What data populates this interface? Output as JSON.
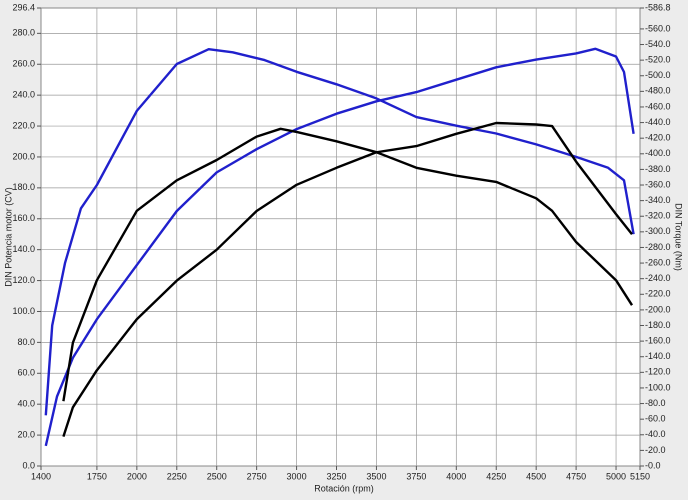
{
  "chart_data": {
    "type": "line",
    "xlabel": "Rotación (rpm)",
    "ylabel": "DIN Potencia motor (CV)",
    "y2label": "DIN Torque (Nm)",
    "xlim": [
      1400,
      5150
    ],
    "xticks": [
      1400,
      1750,
      2000,
      2250,
      2500,
      2750,
      3000,
      3250,
      3500,
      3750,
      4000,
      4250,
      4500,
      4750,
      5000,
      5150
    ],
    "ylim": [
      0,
      296.4
    ],
    "yticks": [
      {
        "value": 0,
        "label": "0.0"
      },
      {
        "value": 20,
        "label": "20.0"
      },
      {
        "value": 40,
        "label": "40.0"
      },
      {
        "value": 60,
        "label": "60.0"
      },
      {
        "value": 80,
        "label": "80.0"
      },
      {
        "value": 100,
        "label": "100.0"
      },
      {
        "value": 120,
        "label": "120.0"
      },
      {
        "value": 140,
        "label": "140.0"
      },
      {
        "value": 160,
        "label": "160.0"
      },
      {
        "value": 180,
        "label": "180.0"
      },
      {
        "value": 200,
        "label": "200.0"
      },
      {
        "value": 220,
        "label": "220.0"
      },
      {
        "value": 240,
        "label": "240.0"
      },
      {
        "value": 260,
        "label": "260.0"
      },
      {
        "value": 280,
        "label": "280.0"
      },
      {
        "value": 296.4,
        "label": "296.4"
      }
    ],
    "y2lim": [
      0,
      586.8
    ],
    "y2ticks": [
      {
        "value": 0,
        "label": "-0.0"
      },
      {
        "value": 20,
        "label": "-20.0"
      },
      {
        "value": 40,
        "label": "-40.0"
      },
      {
        "value": 60,
        "label": "-60.0"
      },
      {
        "value": 80,
        "label": "-80.0"
      },
      {
        "value": 100,
        "label": "-100.0"
      },
      {
        "value": 120,
        "label": "-120.0"
      },
      {
        "value": 140,
        "label": "-140.0"
      },
      {
        "value": 160,
        "label": "-160.0"
      },
      {
        "value": 180,
        "label": "-180.0"
      },
      {
        "value": 200,
        "label": "-200.0"
      },
      {
        "value": 220,
        "label": "-220.0"
      },
      {
        "value": 240,
        "label": "-240.0"
      },
      {
        "value": 260,
        "label": "-260.0"
      },
      {
        "value": 280,
        "label": "-280.0"
      },
      {
        "value": 300,
        "label": "-300.0"
      },
      {
        "value": 320,
        "label": "-320.0"
      },
      {
        "value": 340,
        "label": "-340.0"
      },
      {
        "value": 360,
        "label": "-360.0"
      },
      {
        "value": 380,
        "label": "-380.0"
      },
      {
        "value": 400,
        "label": "-400.0"
      },
      {
        "value": 420,
        "label": "-420.0"
      },
      {
        "value": 440,
        "label": "-440.0"
      },
      {
        "value": 460,
        "label": "-460.0"
      },
      {
        "value": 480,
        "label": "-480.0"
      },
      {
        "value": 500,
        "label": "-500.0"
      },
      {
        "value": 520,
        "label": "-520.0"
      },
      {
        "value": 540,
        "label": "-540.0"
      },
      {
        "value": 560,
        "label": "-560.0"
      },
      {
        "value": 586.8,
        "label": "-586.8"
      }
    ],
    "grid": true,
    "series": [
      {
        "color": "#2020cc",
        "axis": "y2",
        "x": [
          1430,
          1470,
          1550,
          1650,
          1750,
          2000,
          2250,
          2450,
          2600,
          2800,
          3000,
          3250,
          3500,
          3750,
          4000,
          4250,
          4500,
          4750,
          4950,
          5050,
          5110
        ],
        "values": [
          65,
          180,
          260,
          330,
          360,
          455,
          515,
          534,
          530,
          520,
          505,
          489,
          471,
          447,
          436,
          426,
          412,
          396,
          382,
          366,
          297
        ]
      },
      {
        "color": "#2020cc",
        "x": [
          1430,
          1500,
          1600,
          1750,
          2000,
          2250,
          2500,
          2750,
          3000,
          3250,
          3500,
          3750,
          4000,
          4250,
          4500,
          4750,
          4870,
          5000,
          5050,
          5110
        ],
        "values": [
          13,
          45,
          70,
          95,
          130,
          165,
          190,
          205,
          218,
          228,
          236,
          242,
          250,
          258,
          263,
          267,
          270,
          265,
          255,
          215
        ]
      },
      {
        "color": "#000000",
        "x": [
          1540,
          1600,
          1750,
          2000,
          2250,
          2500,
          2750,
          3000,
          3250,
          3500,
          3750,
          4000,
          4250,
          4500,
          4600,
          4750,
          5000,
          5100
        ],
        "values": [
          19,
          38,
          62,
          95,
          120,
          140,
          165,
          182,
          193,
          203,
          207,
          215,
          222,
          221,
          220,
          197,
          163,
          150
        ]
      },
      {
        "color": "#000000",
        "axis": "y2",
        "x": [
          1540,
          1600,
          1750,
          2000,
          2250,
          2500,
          2750,
          2900,
          3000,
          3250,
          3500,
          3750,
          4000,
          4250,
          4500,
          4600,
          4750,
          5000,
          5100
        ],
        "values": [
          83,
          158,
          238,
          327,
          366,
          392,
          422,
          432,
          428,
          416,
          402,
          382,
          372,
          364,
          343,
          327,
          287,
          238,
          206
        ]
      }
    ]
  }
}
